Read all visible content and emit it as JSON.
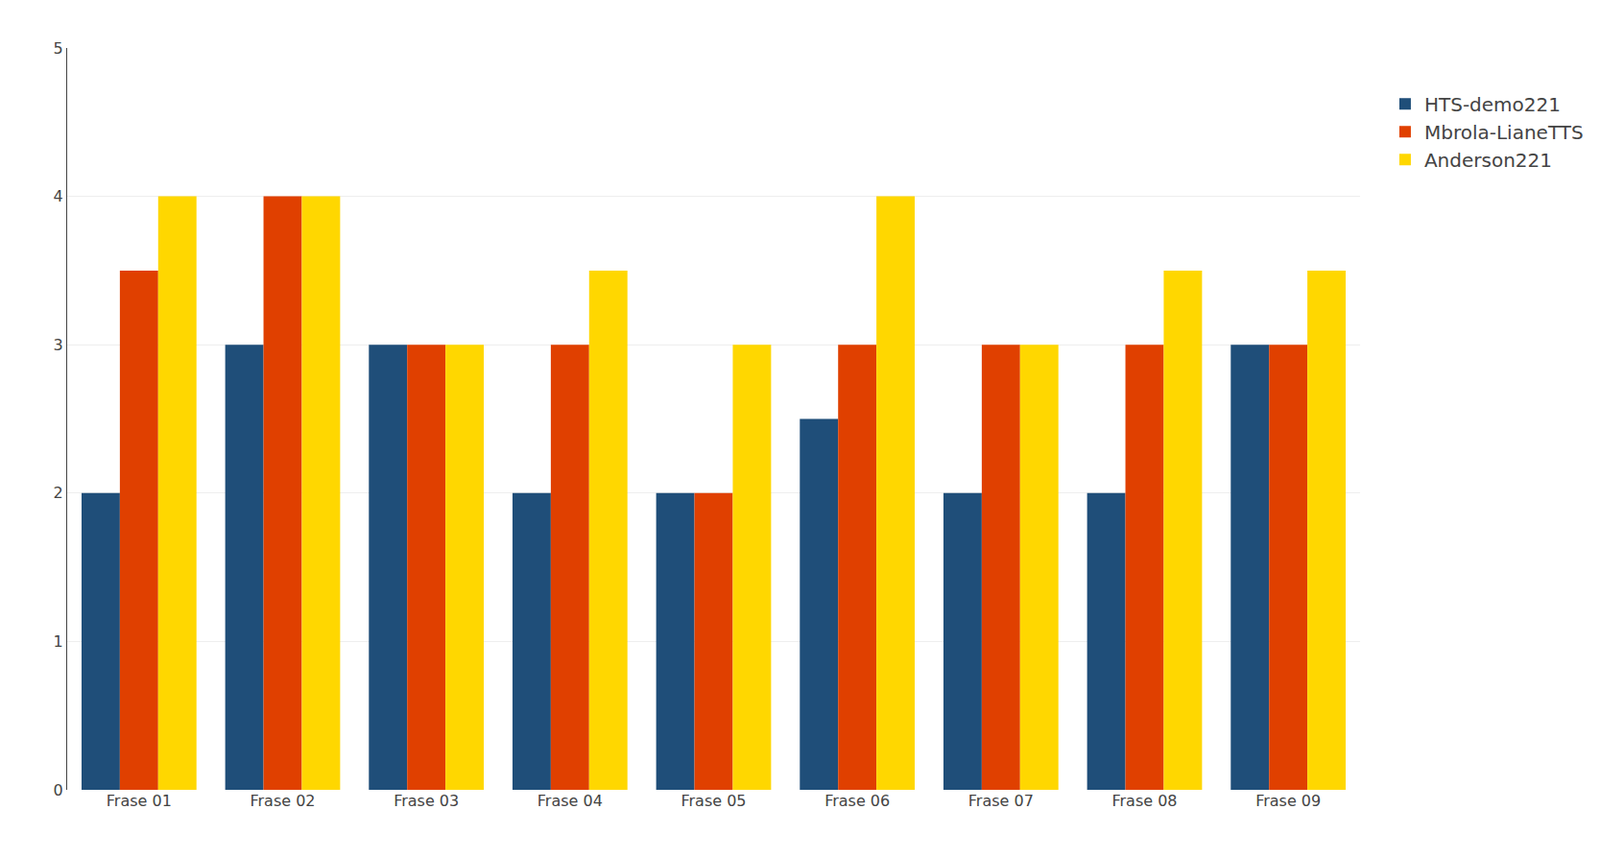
{
  "chart_data": {
    "type": "bar",
    "categories": [
      "Frase 01",
      "Frase 02",
      "Frase 03",
      "Frase 04",
      "Frase 05",
      "Frase 06",
      "Frase 07",
      "Frase 08",
      "Frase 09"
    ],
    "series": [
      {
        "name": "HTS-demo221",
        "color": "#1F4E79",
        "values": [
          2.0,
          3.0,
          3.0,
          2.0,
          2.0,
          2.5,
          2.0,
          2.0,
          3.0
        ]
      },
      {
        "name": "Mbrola-LianeTTS",
        "color": "#E04000",
        "values": [
          3.5,
          4.0,
          3.0,
          3.0,
          2.0,
          3.0,
          3.0,
          3.0,
          3.0
        ]
      },
      {
        "name": "Anderson221",
        "color": "#FFD700",
        "values": [
          4.0,
          4.0,
          3.0,
          3.5,
          3.0,
          4.0,
          3.0,
          3.5,
          3.5
        ]
      }
    ],
    "ylim": [
      0,
      5
    ],
    "yticks": [
      0,
      1,
      2,
      3,
      4,
      5
    ],
    "grid": true,
    "legend": "right"
  }
}
